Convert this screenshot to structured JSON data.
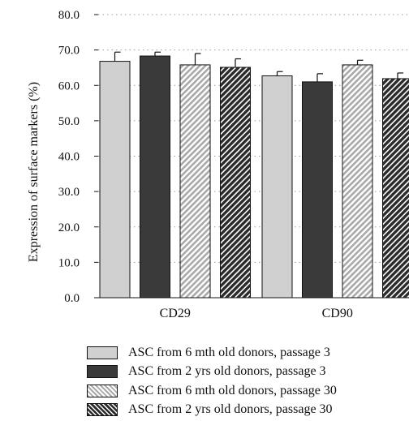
{
  "chart_data": {
    "type": "bar",
    "title": "",
    "xlabel": "",
    "ylabel": "Expression of surface markers (%)",
    "ylim": [
      0,
      80
    ],
    "yticks": [
      "0.0",
      "10.0",
      "20.0",
      "30.0",
      "40.0",
      "50.0",
      "60.0",
      "70.0",
      "80.0"
    ],
    "grid": "horizontal dotted",
    "legend_position": "bottom",
    "categories": [
      "CD29",
      "CD90"
    ],
    "series": [
      {
        "name": "ASC from 6 mth old donors, passage 3",
        "values": [
          66.8,
          62.7
        ],
        "errors": [
          2.6,
          1.2
        ],
        "color": "#d0d0d0",
        "pattern": "solid-light"
      },
      {
        "name": "ASC from 2 yrs old donors, passage 3",
        "values": [
          68.3,
          61.0
        ],
        "errors": [
          1.1,
          2.3
        ],
        "color": "#3a3a3a",
        "pattern": "solid-dark"
      },
      {
        "name": "ASC from 6 mth old donors, passage 30",
        "values": [
          65.8,
          65.8
        ],
        "errors": [
          3.2,
          1.3
        ],
        "color": "#a9a9a9",
        "pattern": "light-hatch"
      },
      {
        "name": "ASC from 2 yrs old donors, passage 30",
        "values": [
          65.1,
          61.9
        ],
        "errors": [
          2.4,
          1.6
        ],
        "color": "#2a2a2a",
        "pattern": "dark-hatch"
      }
    ]
  }
}
